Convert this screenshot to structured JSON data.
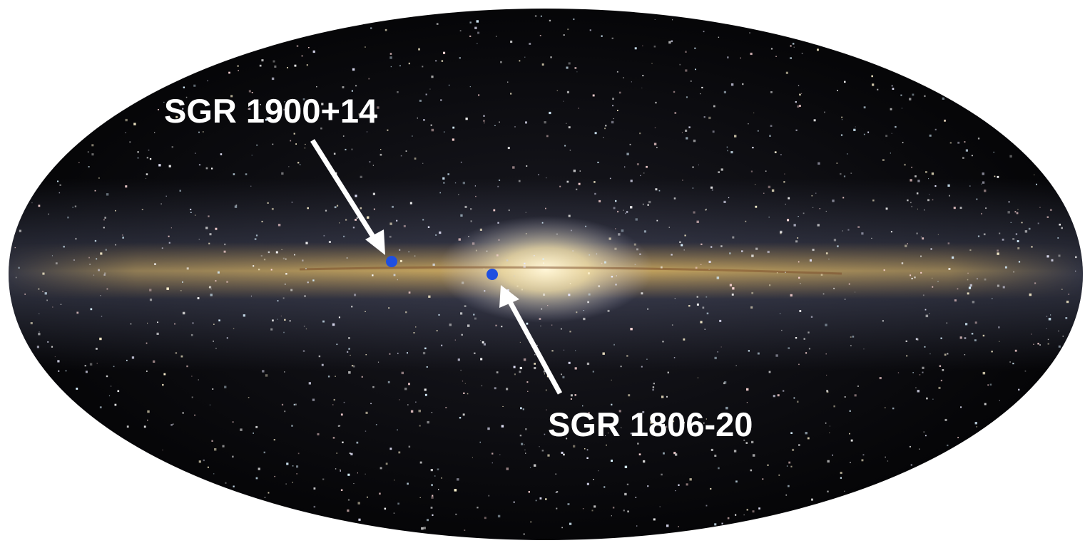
{
  "labels": [
    {
      "text": "SGR 1900+14"
    },
    {
      "text": "SGR 1806-20"
    }
  ]
}
